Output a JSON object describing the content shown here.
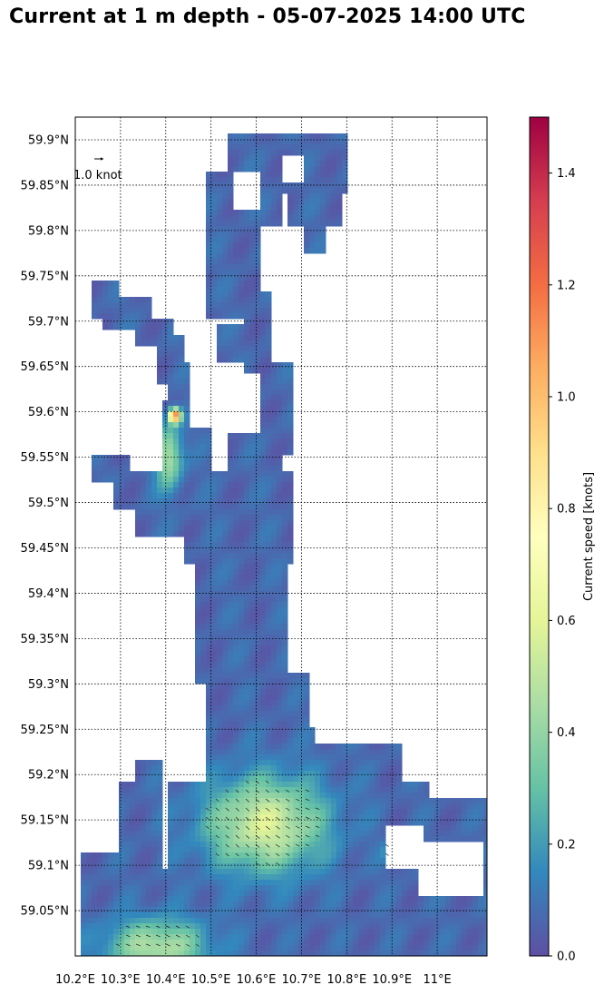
{
  "title": "Current at 1 m depth - 05-07-2025 14:00 UTC",
  "reference_arrow": {
    "label": "1.0 knot",
    "knots": 1.0
  },
  "map": {
    "lon_range": [
      10.2,
      11.11
    ],
    "lat_range": [
      59.0,
      59.925
    ],
    "lon_ticks": [
      {
        "value": 10.2,
        "label": "10.2°E"
      },
      {
        "value": 10.3,
        "label": "10.3°E"
      },
      {
        "value": 10.4,
        "label": "10.4°E"
      },
      {
        "value": 10.5,
        "label": "10.5°E"
      },
      {
        "value": 10.6,
        "label": "10.6°E"
      },
      {
        "value": 10.7,
        "label": "10.7°E"
      },
      {
        "value": 10.8,
        "label": "10.8°E"
      },
      {
        "value": 10.9,
        "label": "10.9°E"
      },
      {
        "value": 11.0,
        "label": "11°E"
      }
    ],
    "lat_ticks": [
      {
        "value": 59.05,
        "label": "59.05°N"
      },
      {
        "value": 59.1,
        "label": "59.1°N"
      },
      {
        "value": 59.15,
        "label": "59.15°N"
      },
      {
        "value": 59.2,
        "label": "59.2°N"
      },
      {
        "value": 59.25,
        "label": "59.25°N"
      },
      {
        "value": 59.3,
        "label": "59.3°N"
      },
      {
        "value": 59.35,
        "label": "59.35°N"
      },
      {
        "value": 59.4,
        "label": "59.4°N"
      },
      {
        "value": 59.45,
        "label": "59.45°N"
      },
      {
        "value": 59.5,
        "label": "59.5°N"
      },
      {
        "value": 59.55,
        "label": "59.55°N"
      },
      {
        "value": 59.6,
        "label": "59.6°N"
      },
      {
        "value": 59.65,
        "label": "59.65°N"
      },
      {
        "value": 59.7,
        "label": "59.7°N"
      },
      {
        "value": 59.75,
        "label": "59.75°N"
      },
      {
        "value": 59.8,
        "label": "59.8°N"
      },
      {
        "value": 59.85,
        "label": "59.85°N"
      },
      {
        "value": 59.9,
        "label": "59.9°N"
      }
    ],
    "grid": "dotted"
  },
  "colorbar": {
    "label": "Current speed [knots]",
    "range": [
      0.0,
      1.5
    ],
    "colormap": "Spectral_r",
    "ticks": [
      {
        "value": 0.0,
        "label": "0.0"
      },
      {
        "value": 0.2,
        "label": "0.2"
      },
      {
        "value": 0.4,
        "label": "0.4"
      },
      {
        "value": 0.6,
        "label": "0.6"
      },
      {
        "value": 0.8,
        "label": "0.8"
      },
      {
        "value": 1.0,
        "label": "1.0"
      },
      {
        "value": 1.2,
        "label": "1.2"
      },
      {
        "value": 1.4,
        "label": "1.4"
      }
    ],
    "colors": [
      "#5e4fa2",
      "#3288bd",
      "#66c2a5",
      "#abdda4",
      "#e6f598",
      "#ffffbf",
      "#fee08b",
      "#fdae61",
      "#f46d43",
      "#d53e4f",
      "#9e0142"
    ]
  }
}
